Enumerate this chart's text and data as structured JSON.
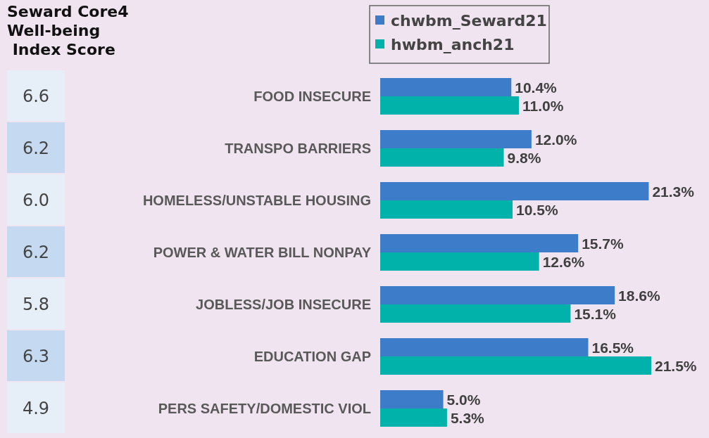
{
  "chart_data": [
    {
      "type": "other",
      "title": "Seward Core4\nWell-being\n Index Score",
      "annotations": [
        "6.6",
        "6.2",
        "6.0",
        "6.2",
        "5.8",
        "6.3",
        "4.9"
      ]
    },
    {
      "type": "bar",
      "orientation": "horizontal",
      "legend": "top",
      "categories": [
        "FOOD INSECURE",
        "TRANSPO BARRIERS",
        "HOMELESS/UNSTABLE HOUSING",
        "POWER & WATER BILL NONPAY",
        "JOBLESS/JOB INSECURE",
        "EDUCATION GAP",
        "PERS SAFETY/DOMESTIC VIOL"
      ],
      "series": [
        {
          "name": "chwbm_Seward21",
          "color": "#3d7cc9",
          "values": [
            10.4,
            12.0,
            21.3,
            15.7,
            18.6,
            16.5,
            5.0
          ],
          "value_labels": [
            "10.4%",
            "12.0%",
            "21.3%",
            "15.7%",
            "18.6%",
            "16.5%",
            "5.0%"
          ]
        },
        {
          "name": "hwbm_anch21",
          "color": "#00b2a9",
          "values": [
            11.0,
            9.8,
            10.5,
            12.6,
            15.1,
            21.5,
            5.3
          ],
          "value_labels": [
            "11.0%",
            "9.8%",
            "10.5%",
            "12.6%",
            "15.1%",
            "21.5%",
            "5.3%"
          ]
        }
      ]
    }
  ]
}
